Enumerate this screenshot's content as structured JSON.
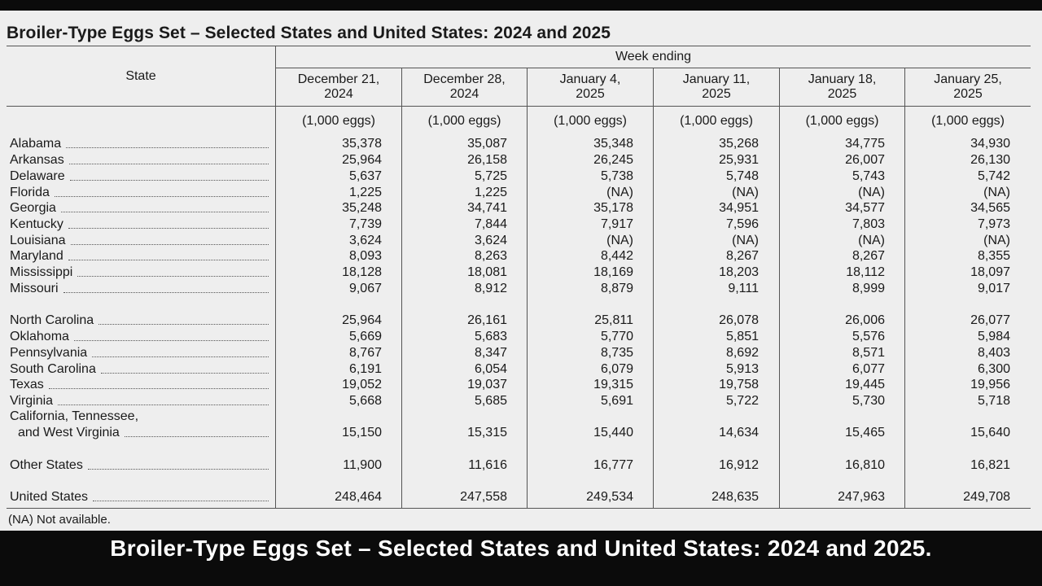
{
  "title": "Broiler-Type Eggs Set – Selected States and United States: 2024 and 2025",
  "headers": {
    "state": "State",
    "week_ending": "Week ending",
    "columns": [
      {
        "line1": "December 21,",
        "line2": "2024"
      },
      {
        "line1": "December 28,",
        "line2": "2024"
      },
      {
        "line1": "January 4,",
        "line2": "2025"
      },
      {
        "line1": "January 11,",
        "line2": "2025"
      },
      {
        "line1": "January 18,",
        "line2": "2025"
      },
      {
        "line1": "January 25,",
        "line2": "2025"
      }
    ],
    "unit": "(1,000 eggs)"
  },
  "rows": [
    {
      "state": "Alabama",
      "values": [
        "35,378",
        "35,087",
        "35,348",
        "35,268",
        "34,775",
        "34,930"
      ]
    },
    {
      "state": "Arkansas",
      "values": [
        "25,964",
        "26,158",
        "26,245",
        "25,931",
        "26,007",
        "26,130"
      ]
    },
    {
      "state": "Delaware",
      "values": [
        "5,637",
        "5,725",
        "5,738",
        "5,748",
        "5,743",
        "5,742"
      ]
    },
    {
      "state": "Florida",
      "values": [
        "1,225",
        "1,225",
        "(NA)",
        "(NA)",
        "(NA)",
        "(NA)"
      ]
    },
    {
      "state": "Georgia",
      "values": [
        "35,248",
        "34,741",
        "35,178",
        "34,951",
        "34,577",
        "34,565"
      ]
    },
    {
      "state": "Kentucky",
      "values": [
        "7,739",
        "7,844",
        "7,917",
        "7,596",
        "7,803",
        "7,973"
      ]
    },
    {
      "state": "Louisiana",
      "values": [
        "3,624",
        "3,624",
        "(NA)",
        "(NA)",
        "(NA)",
        "(NA)"
      ]
    },
    {
      "state": "Maryland",
      "values": [
        "8,093",
        "8,263",
        "8,442",
        "8,267",
        "8,267",
        "8,355"
      ]
    },
    {
      "state": "Mississippi",
      "values": [
        "18,128",
        "18,081",
        "18,169",
        "18,203",
        "18,112",
        "18,097"
      ]
    },
    {
      "state": "Missouri",
      "values": [
        "9,067",
        "8,912",
        "8,879",
        "9,111",
        "8,999",
        "9,017"
      ]
    },
    {
      "state": "North Carolina",
      "values": [
        "25,964",
        "26,161",
        "25,811",
        "26,078",
        "26,006",
        "26,077"
      ]
    },
    {
      "state": "Oklahoma",
      "values": [
        "5,669",
        "5,683",
        "5,770",
        "5,851",
        "5,576",
        "5,984"
      ]
    },
    {
      "state": "Pennsylvania",
      "values": [
        "8,767",
        "8,347",
        "8,735",
        "8,692",
        "8,571",
        "8,403"
      ]
    },
    {
      "state": "South Carolina",
      "values": [
        "6,191",
        "6,054",
        "6,079",
        "5,913",
        "6,077",
        "6,300"
      ]
    },
    {
      "state": "Texas",
      "values": [
        "19,052",
        "19,037",
        "19,315",
        "19,758",
        "19,445",
        "19,956"
      ]
    },
    {
      "state": "Virginia",
      "values": [
        "5,668",
        "5,685",
        "5,691",
        "5,722",
        "5,730",
        "5,718"
      ]
    },
    {
      "state_line1": "California, Tennessee,",
      "state": "and West Virginia",
      "values": [
        "15,150",
        "15,315",
        "15,440",
        "14,634",
        "15,465",
        "15,640"
      ]
    },
    {
      "state": "Other States",
      "values": [
        "11,900",
        "11,616",
        "16,777",
        "16,912",
        "16,810",
        "16,821"
      ]
    },
    {
      "state": "United States",
      "values": [
        "248,464",
        "247,558",
        "249,534",
        "248,635",
        "247,963",
        "249,708"
      ]
    }
  ],
  "footnote": "(NA) Not available.",
  "caption": "Broiler-Type Eggs Set – Selected States and United States: 2024 and 2025."
}
